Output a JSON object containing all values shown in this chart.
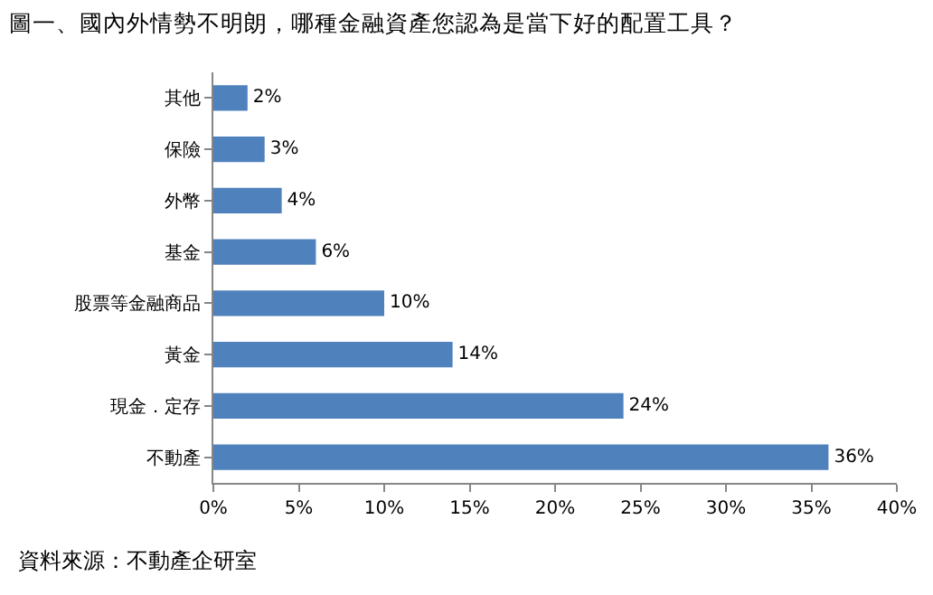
{
  "chart_data": {
    "type": "bar",
    "orientation": "horizontal",
    "title": "圖一、國內外情勢不明朗，哪種金融資產您認為是當下好的配置工具？",
    "categories": [
      "其他",
      "保險",
      "外幣",
      "基金",
      "股票等金融商品",
      "黃金",
      "現金．定存",
      "不動產"
    ],
    "values": [
      2,
      3,
      4,
      6,
      10,
      14,
      24,
      36
    ],
    "color": "#4f81bd",
    "xlim": [
      0,
      40
    ],
    "xticks": [
      {
        "value": 0,
        "label": "0%"
      },
      {
        "value": 5,
        "label": "5%"
      },
      {
        "value": 10,
        "label": "10%"
      },
      {
        "value": 15,
        "label": "15%"
      },
      {
        "value": 20,
        "label": "20%"
      },
      {
        "value": 25,
        "label": "25%"
      },
      {
        "value": 30,
        "label": "30%"
      },
      {
        "value": 35,
        "label": "35%"
      },
      {
        "value": 40,
        "label": "40%"
      }
    ],
    "value_labels": [
      "2%",
      "3%",
      "4%",
      "6%",
      "10%",
      "14%",
      "24%",
      "36%"
    ],
    "annotations": [
      "資料來源：不動產企研室"
    ]
  }
}
